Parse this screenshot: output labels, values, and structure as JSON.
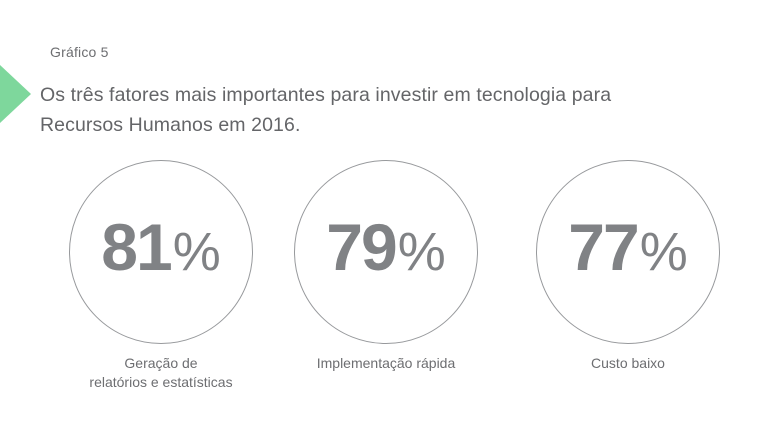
{
  "slide": {
    "kicker": "Gráfico 5",
    "title_lines": [
      "Os três fatores mais importantes para investir em tecnologia para",
      "Recursos Humanos em 2016."
    ]
  },
  "colors": {
    "accent_green": "#7ED79C",
    "number_gray": "#808285",
    "label_gray": "#6D6E71",
    "title_gray": "#646568",
    "circle_border": "#97999C",
    "background": "#FFFFFF"
  },
  "chart_data": {
    "type": "bar",
    "variant": "kpi-percentage-circles",
    "title": "Os três fatores mais importantes para investir em tecnologia para Recursos Humanos em 2016.",
    "subtitle": "Gráfico 5",
    "categories": [
      "Geração de relatórios e estatísticas",
      "Implementação rápida",
      "Custo baixo"
    ],
    "values": [
      81,
      79,
      77
    ],
    "unit": "%",
    "ylim": [
      0,
      100
    ],
    "legend": false,
    "grid": false
  },
  "stats": [
    {
      "value": "81",
      "label_lines": [
        "Geração de",
        "relatórios e estatísticas"
      ]
    },
    {
      "value": "79",
      "label_lines": [
        "Implementação rápida"
      ]
    },
    {
      "value": "77",
      "label_lines": [
        "Custo baixo"
      ]
    }
  ]
}
